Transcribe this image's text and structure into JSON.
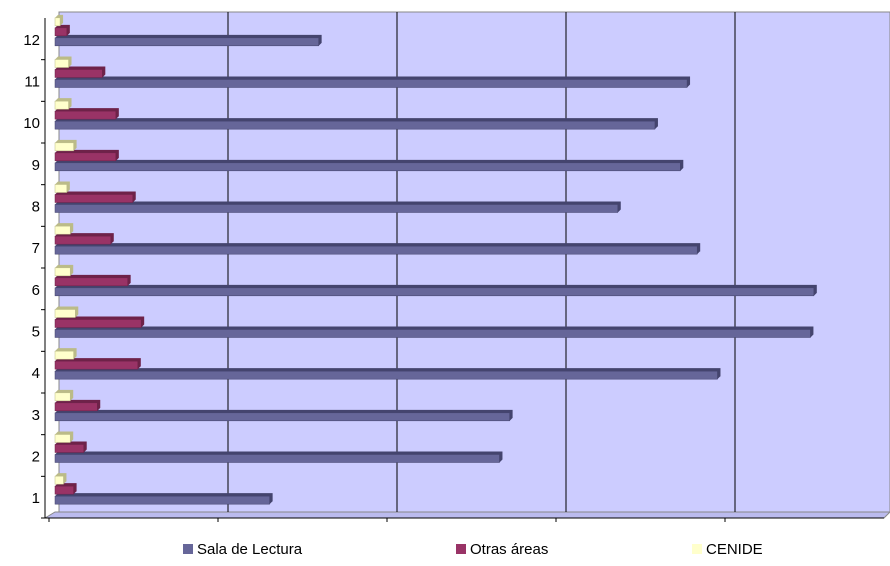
{
  "chart_data": {
    "type": "bar",
    "orientation": "horizontal",
    "categories": [
      "1",
      "2",
      "3",
      "4",
      "5",
      "6",
      "7",
      "8",
      "9",
      "10",
      "11",
      "12"
    ],
    "series": [
      {
        "name": "Sala de Lectura",
        "color": "#666699",
        "values": [
          1.27,
          2.63,
          2.69,
          3.92,
          4.47,
          4.49,
          3.8,
          3.33,
          3.7,
          3.55,
          3.74,
          1.56
        ]
      },
      {
        "name": "Otras áreas",
        "color": "#993366",
        "values": [
          0.11,
          0.17,
          0.25,
          0.49,
          0.51,
          0.43,
          0.33,
          0.46,
          0.36,
          0.36,
          0.28,
          0.07
        ]
      },
      {
        "name": "CENIDE",
        "color": "#ffffcc",
        "values": [
          0.05,
          0.09,
          0.09,
          0.11,
          0.12,
          0.09,
          0.09,
          0.07,
          0.11,
          0.08,
          0.08,
          0.03
        ]
      }
    ],
    "xlim": [
      0,
      4.9
    ],
    "xticks": [
      0,
      1,
      2,
      3,
      4
    ],
    "grid": true,
    "legend": "bottom"
  }
}
